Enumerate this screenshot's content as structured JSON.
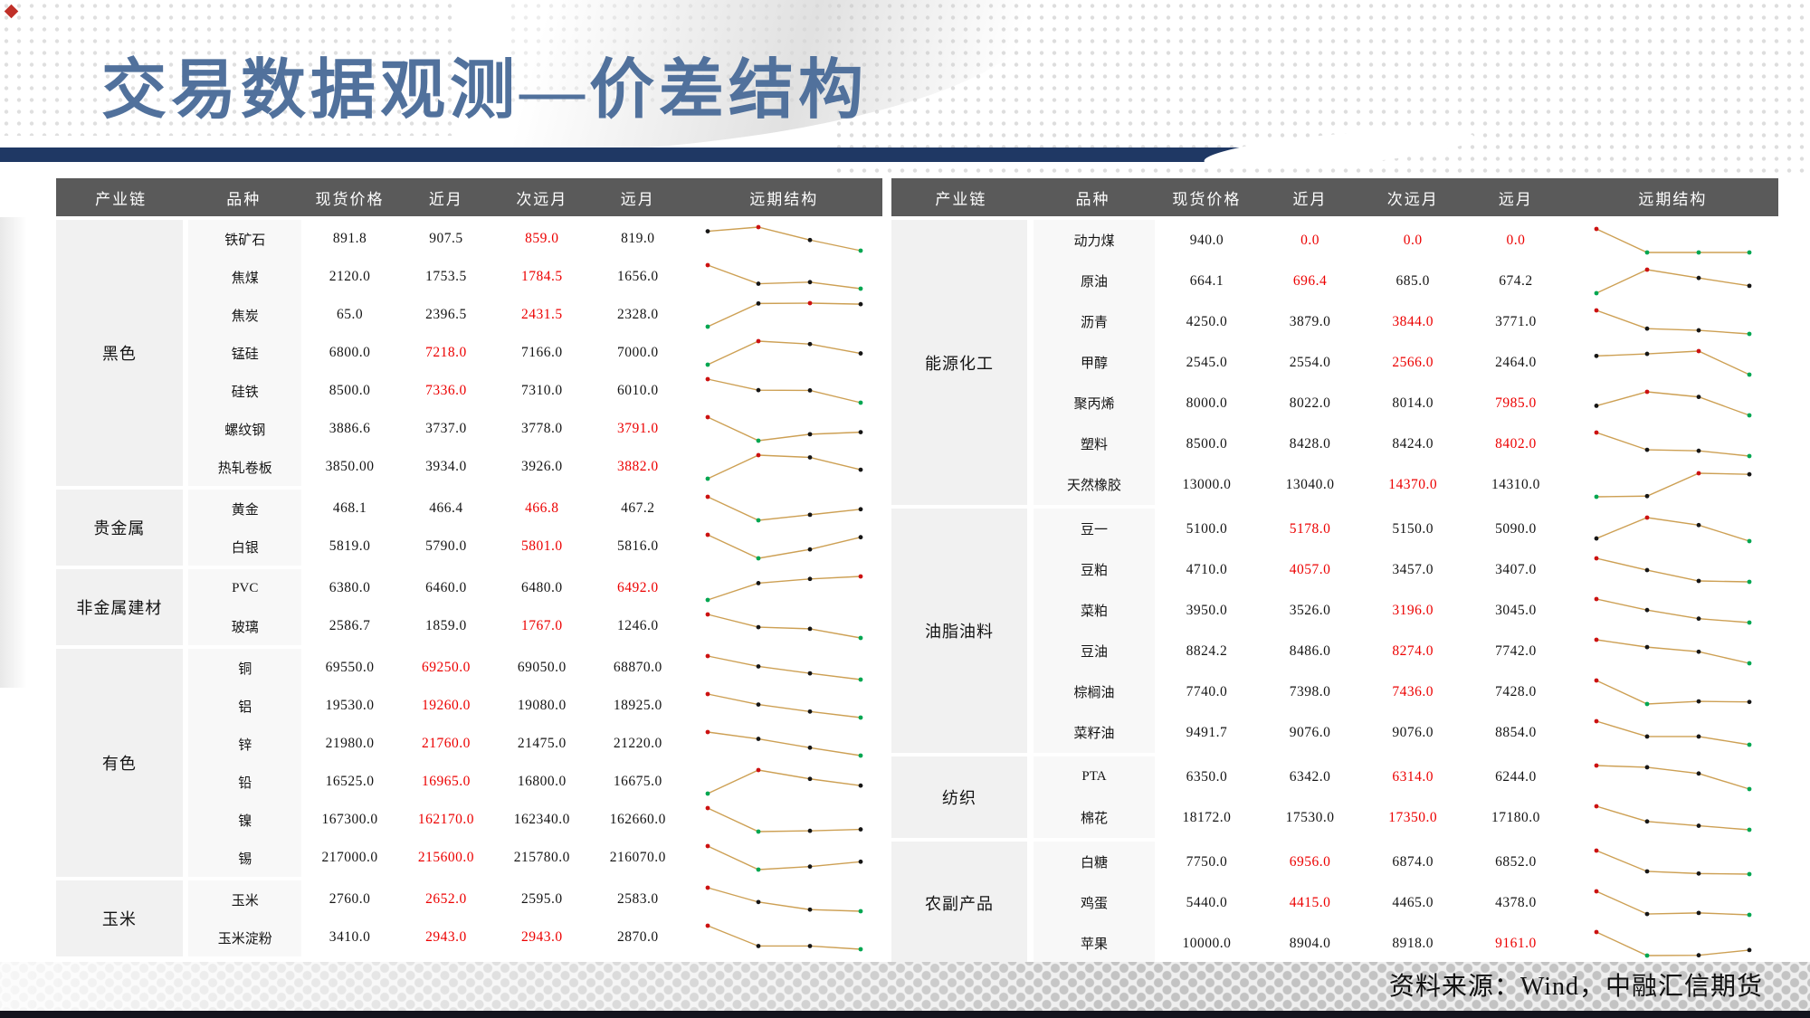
{
  "title": "交易数据观测—价差结构",
  "source_note": "资料来源：Wind，中融汇信期货",
  "colors": {
    "title_text": "#51719c",
    "title_bar": "#1f3864",
    "header_bg": "#5a5a5a",
    "header_text": "#ffffff",
    "highlight_red": "#ec0000",
    "spark_line": "#cda054",
    "spark_max_dot": "#cc1111",
    "spark_min_dot": "#00a651",
    "spark_dot": "#161616",
    "chain_cell_bg": "#f1f1f1",
    "variety_cell_bg": "#f8f8f8"
  },
  "columns": [
    "产业链",
    "品种",
    "现货价格",
    "近月",
    "次远月",
    "远月",
    "远期结构"
  ],
  "tables": [
    {
      "id": "left",
      "groups": [
        {
          "chain": "黑色",
          "rows": [
            {
              "variety": "铁矿石",
              "values": [
                "891.8",
                "907.5",
                "859.0",
                "819.0"
              ],
              "red": [
                2
              ]
            },
            {
              "variety": "焦煤",
              "values": [
                "2120.0",
                "1753.5",
                "1784.5",
                "1656.0"
              ],
              "red": [
                2
              ]
            },
            {
              "variety": "焦炭",
              "values": [
                "65.0",
                "2396.5",
                "2431.5",
                "2328.0"
              ],
              "red": [
                2
              ]
            },
            {
              "variety": "锰硅",
              "values": [
                "6800.0",
                "7218.0",
                "7166.0",
                "7000.0"
              ],
              "red": [
                1
              ]
            },
            {
              "variety": "硅铁",
              "values": [
                "8500.0",
                "7336.0",
                "7310.0",
                "6010.0"
              ],
              "red": [
                1
              ]
            },
            {
              "variety": "螺纹钢",
              "values": [
                "3886.6",
                "3737.0",
                "3778.0",
                "3791.0"
              ],
              "red": [
                3
              ]
            },
            {
              "variety": "热轧卷板",
              "values": [
                "3850.00",
                "3934.0",
                "3926.0",
                "3882.0"
              ],
              "red": [
                3
              ]
            }
          ]
        },
        {
          "chain": "贵金属",
          "rows": [
            {
              "variety": "黄金",
              "values": [
                "468.1",
                "466.4",
                "466.8",
                "467.2"
              ],
              "red": [
                2
              ]
            },
            {
              "variety": "白银",
              "values": [
                "5819.0",
                "5790.0",
                "5801.0",
                "5816.0"
              ],
              "red": [
                2
              ]
            }
          ]
        },
        {
          "chain": "非金属建材",
          "rows": [
            {
              "variety": "PVC",
              "values": [
                "6380.0",
                "6460.0",
                "6480.0",
                "6492.0"
              ],
              "red": [
                3
              ]
            },
            {
              "variety": "玻璃",
              "values": [
                "2586.7",
                "1859.0",
                "1767.0",
                "1246.0"
              ],
              "red": [
                2
              ]
            }
          ]
        },
        {
          "chain": "有色",
          "rows": [
            {
              "variety": "铜",
              "values": [
                "69550.0",
                "69250.0",
                "69050.0",
                "68870.0"
              ],
              "red": [
                1
              ]
            },
            {
              "variety": "铝",
              "values": [
                "19530.0",
                "19260.0",
                "19080.0",
                "18925.0"
              ],
              "red": [
                1
              ]
            },
            {
              "variety": "锌",
              "values": [
                "21980.0",
                "21760.0",
                "21475.0",
                "21220.0"
              ],
              "red": [
                1
              ]
            },
            {
              "variety": "铅",
              "values": [
                "16525.0",
                "16965.0",
                "16800.0",
                "16675.0"
              ],
              "red": [
                1
              ]
            },
            {
              "variety": "镍",
              "values": [
                "167300.0",
                "162170.0",
                "162340.0",
                "162660.0"
              ],
              "red": [
                1
              ]
            },
            {
              "variety": "锡",
              "values": [
                "217000.0",
                "215600.0",
                "215780.0",
                "216070.0"
              ],
              "red": [
                1
              ]
            }
          ]
        },
        {
          "chain": "玉米",
          "rows": [
            {
              "variety": "玉米",
              "values": [
                "2760.0",
                "2652.0",
                "2595.0",
                "2583.0"
              ],
              "red": [
                1
              ]
            },
            {
              "variety": "玉米淀粉",
              "values": [
                "3410.0",
                "2943.0",
                "2943.0",
                "2870.0"
              ],
              "red": [
                1,
                2
              ]
            }
          ]
        }
      ]
    },
    {
      "id": "right",
      "groups": [
        {
          "chain": "能源化工",
          "rows": [
            {
              "variety": "动力煤",
              "values": [
                "940.0",
                "0.0",
                "0.0",
                "0.0"
              ],
              "red": [
                1,
                2,
                3
              ]
            },
            {
              "variety": "原油",
              "values": [
                "664.1",
                "696.4",
                "685.0",
                "674.2"
              ],
              "red": [
                1
              ]
            },
            {
              "variety": "沥青",
              "values": [
                "4250.0",
                "3879.0",
                "3844.0",
                "3771.0"
              ],
              "red": [
                2
              ]
            },
            {
              "variety": "甲醇",
              "values": [
                "2545.0",
                "2554.0",
                "2566.0",
                "2464.0"
              ],
              "red": [
                2
              ]
            },
            {
              "variety": "聚丙烯",
              "values": [
                "8000.0",
                "8022.0",
                "8014.0",
                "7985.0"
              ],
              "red": [
                3
              ]
            },
            {
              "variety": "塑料",
              "values": [
                "8500.0",
                "8428.0",
                "8424.0",
                "8402.0"
              ],
              "red": [
                3
              ]
            },
            {
              "variety": "天然橡胶",
              "values": [
                "13000.0",
                "13040.0",
                "14370.0",
                "14310.0"
              ],
              "red": [
                2
              ]
            }
          ]
        },
        {
          "chain": "油脂油料",
          "rows": [
            {
              "variety": "豆一",
              "values": [
                "5100.0",
                "5178.0",
                "5150.0",
                "5090.0"
              ],
              "red": [
                1
              ]
            },
            {
              "variety": "豆粕",
              "values": [
                "4710.0",
                "4057.0",
                "3457.0",
                "3407.0"
              ],
              "red": [
                1
              ]
            },
            {
              "variety": "菜粕",
              "values": [
                "3950.0",
                "3526.0",
                "3196.0",
                "3045.0"
              ],
              "red": [
                2
              ]
            },
            {
              "variety": "豆油",
              "values": [
                "8824.2",
                "8486.0",
                "8274.0",
                "7742.0"
              ],
              "red": [
                2
              ]
            },
            {
              "variety": "棕榈油",
              "values": [
                "7740.0",
                "7398.0",
                "7436.0",
                "7428.0"
              ],
              "red": [
                2
              ]
            },
            {
              "variety": "菜籽油",
              "values": [
                "9491.7",
                "9076.0",
                "9076.0",
                "8854.0"
              ],
              "red": []
            }
          ]
        },
        {
          "chain": "纺织",
          "rows": [
            {
              "variety": "PTA",
              "values": [
                "6350.0",
                "6342.0",
                "6314.0",
                "6244.0"
              ],
              "red": [
                2
              ]
            },
            {
              "variety": "棉花",
              "values": [
                "18172.0",
                "17530.0",
                "17350.0",
                "17180.0"
              ],
              "red": [
                2
              ]
            }
          ]
        },
        {
          "chain": "农副产品",
          "rows": [
            {
              "variety": "白糖",
              "values": [
                "7750.0",
                "6956.0",
                "6874.0",
                "6852.0"
              ],
              "red": [
                1
              ]
            },
            {
              "variety": "鸡蛋",
              "values": [
                "5440.0",
                "4415.0",
                "4465.0",
                "4378.0"
              ],
              "red": [
                1
              ]
            },
            {
              "variety": "苹果",
              "values": [
                "10000.0",
                "8904.0",
                "8918.0",
                "9161.0"
              ],
              "red": [
                3
              ]
            }
          ]
        }
      ]
    }
  ]
}
